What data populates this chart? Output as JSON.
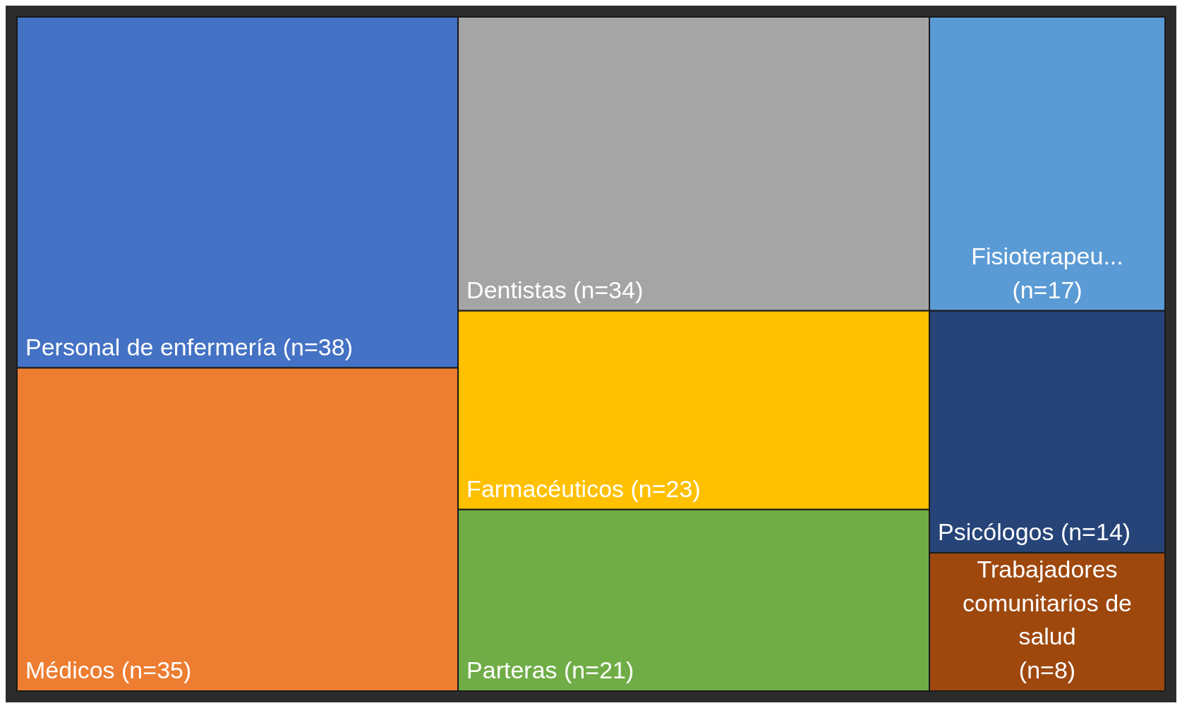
{
  "chart_data": {
    "type": "other",
    "categories": [
      "Personal de enfermería",
      "Médicos",
      "Dentistas",
      "Farmacéuticos",
      "Parteras",
      "Fisioterapeu...",
      "Psicólogos",
      "Trabajadores comunitarios de salud"
    ],
    "values": [
      38,
      35,
      34,
      23,
      21,
      17,
      14,
      8
    ],
    "value_labels": [
      "(n=38)",
      "(n=35)",
      "(n=34)",
      "(n=23)",
      "(n=21)",
      "(n=17)",
      "(n=14)",
      "(n=8)"
    ],
    "colors": [
      "#4472c4",
      "#ed7d31",
      "#a5a5a5",
      "#ffc000",
      "#70ad47",
      "#5b9bd5",
      "#264478",
      "#9e480e"
    ]
  }
}
